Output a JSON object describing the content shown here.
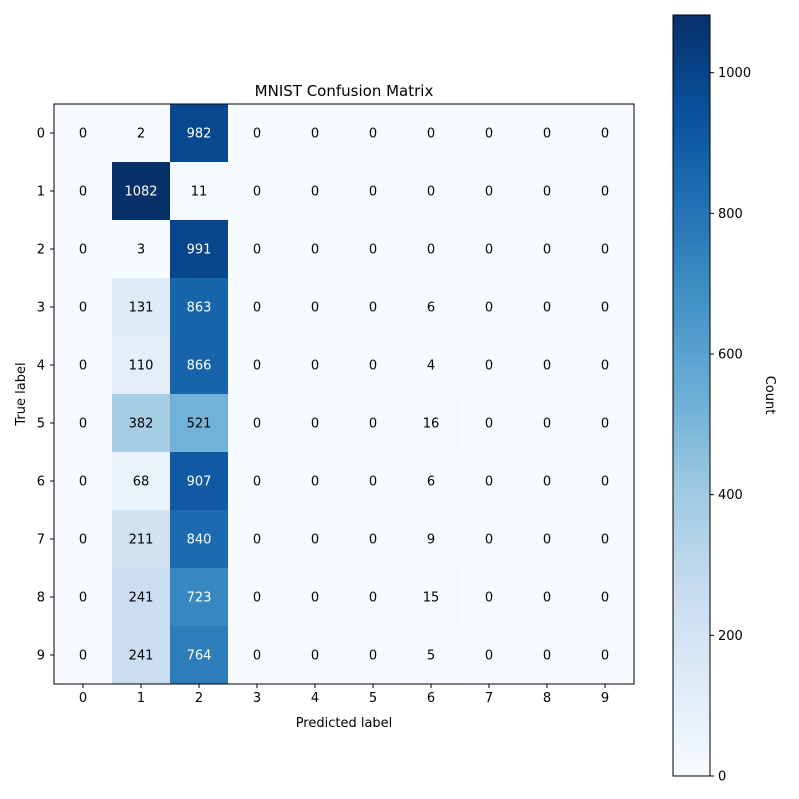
{
  "chart_data": {
    "type": "heatmap",
    "title": "MNIST Confusion Matrix",
    "xlabel": "Predicted label",
    "ylabel": "True label",
    "x_ticks": [
      "0",
      "1",
      "2",
      "3",
      "4",
      "5",
      "6",
      "7",
      "8",
      "9"
    ],
    "y_ticks": [
      "0",
      "1",
      "2",
      "3",
      "4",
      "5",
      "6",
      "7",
      "8",
      "9"
    ],
    "values": [
      [
        0,
        2,
        982,
        0,
        0,
        0,
        0,
        0,
        0,
        0
      ],
      [
        0,
        1082,
        11,
        0,
        0,
        0,
        0,
        0,
        0,
        0
      ],
      [
        0,
        3,
        991,
        0,
        0,
        0,
        0,
        0,
        0,
        0
      ],
      [
        0,
        131,
        863,
        0,
        0,
        0,
        6,
        0,
        0,
        0
      ],
      [
        0,
        110,
        866,
        0,
        0,
        0,
        4,
        0,
        0,
        0
      ],
      [
        0,
        382,
        521,
        0,
        0,
        0,
        16,
        0,
        0,
        0
      ],
      [
        0,
        68,
        907,
        0,
        0,
        0,
        6,
        0,
        0,
        0
      ],
      [
        0,
        211,
        840,
        0,
        0,
        0,
        9,
        0,
        0,
        0
      ],
      [
        0,
        241,
        723,
        0,
        0,
        0,
        15,
        0,
        0,
        0
      ],
      [
        0,
        241,
        764,
        0,
        0,
        0,
        5,
        0,
        0,
        0
      ]
    ],
    "colormap": "Blues",
    "vmin": 0,
    "vmax": 1082,
    "colorbar": {
      "label": "Count",
      "ticks": [
        0,
        200,
        400,
        600,
        800,
        1000
      ]
    },
    "grid": false
  }
}
